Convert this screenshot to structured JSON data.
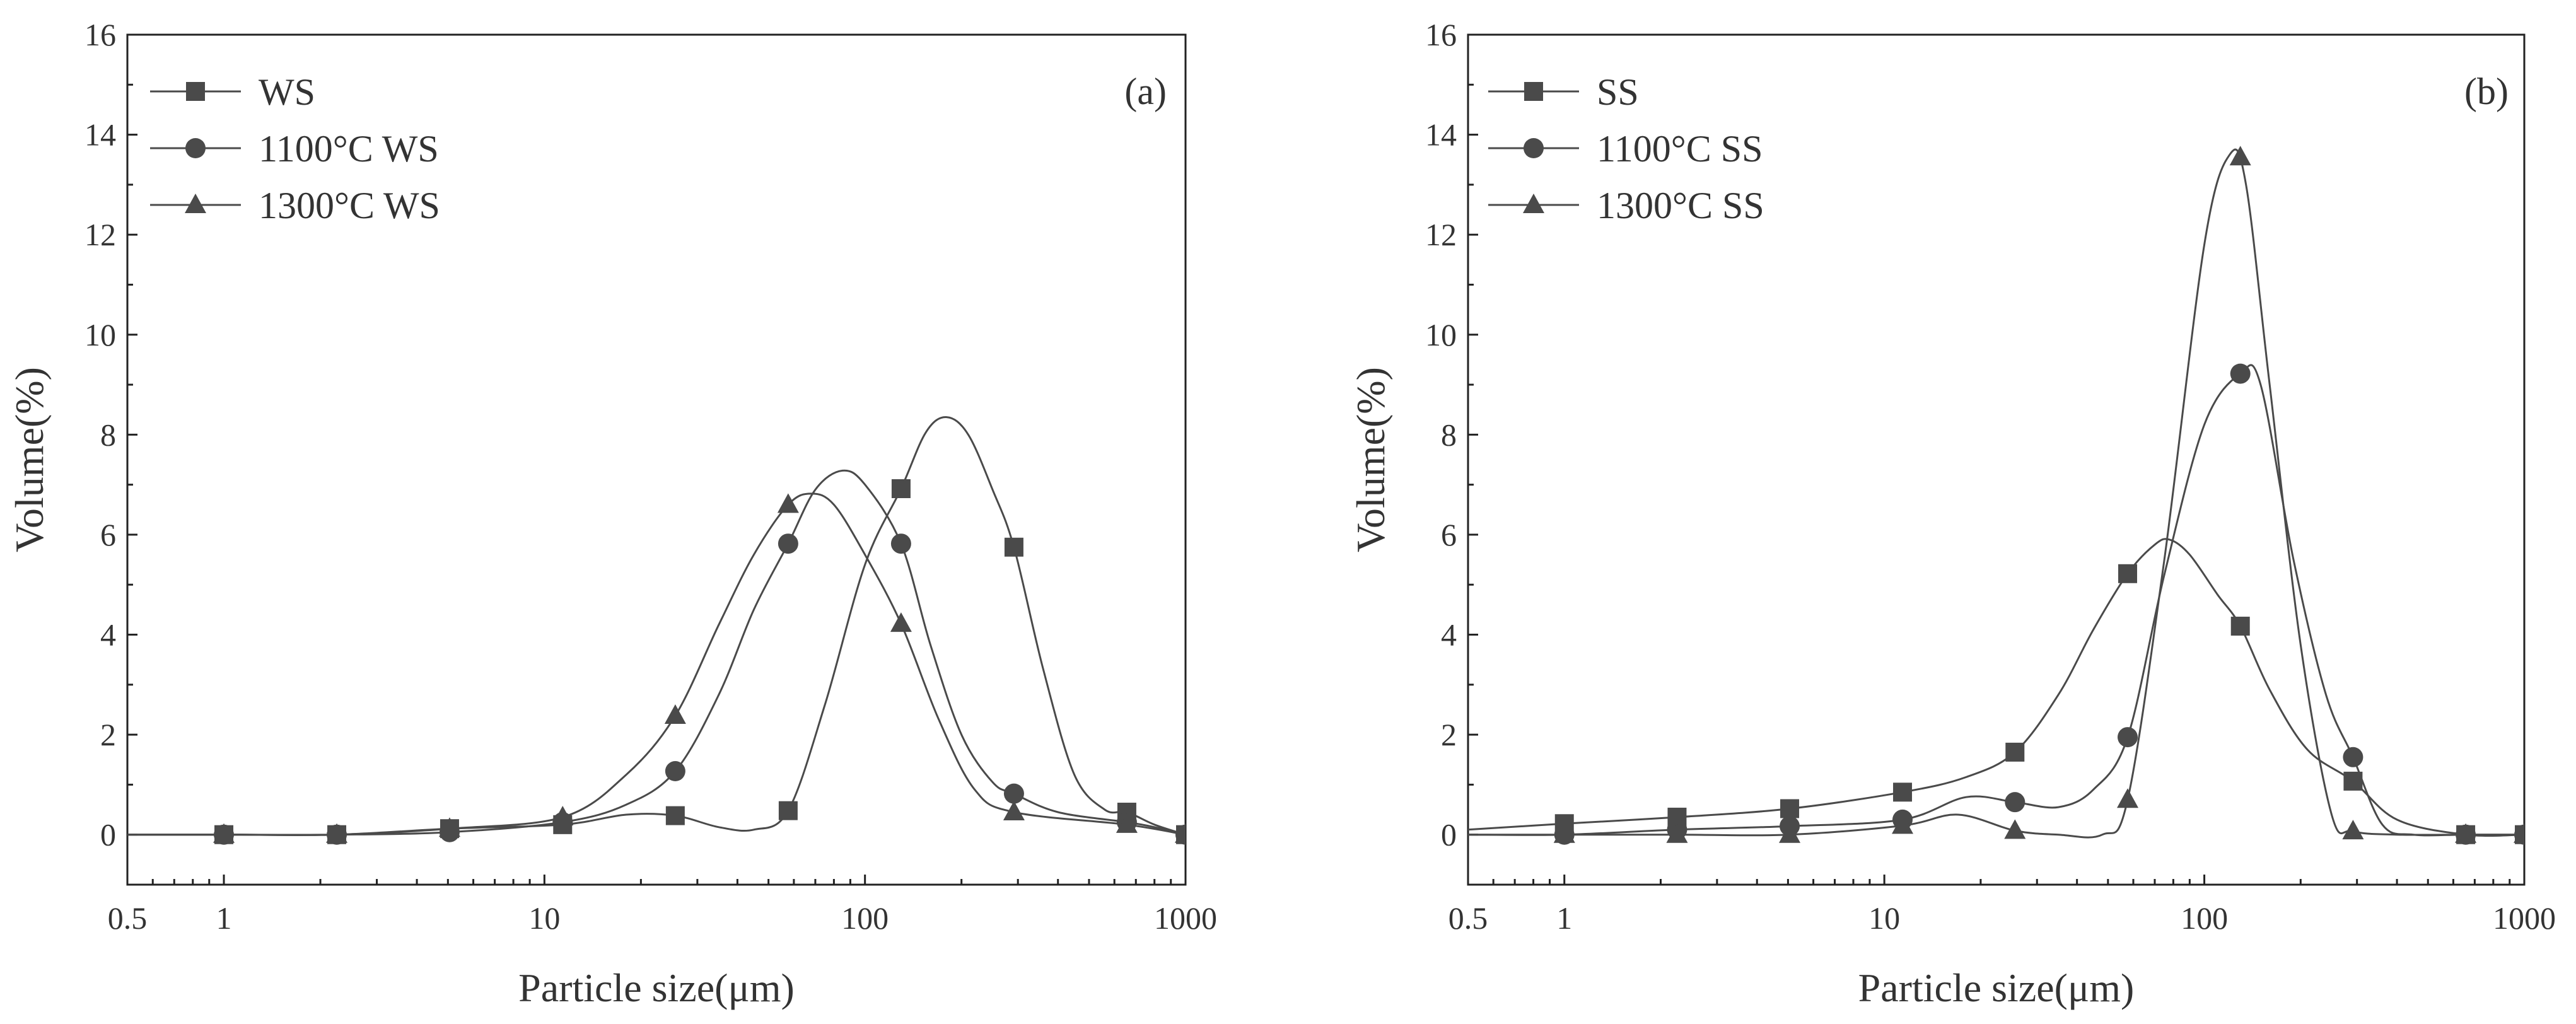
{
  "chart_data": [
    {
      "type": "line",
      "panel_label": "(a)",
      "xlabel": "Particle size(μm)",
      "ylabel": "Volume(%)",
      "xscale": "log",
      "xlim": [
        0.5,
        1000
      ],
      "ylim": [
        -1,
        16
      ],
      "x_ticks": [
        0.5,
        1,
        10,
        100,
        1000
      ],
      "x_tick_labels": [
        "0.5",
        "1",
        "10",
        "100",
        "1000"
      ],
      "y_ticks": [
        0,
        2,
        4,
        6,
        8,
        10,
        12,
        14,
        16
      ],
      "y_tick_labels": [
        "0",
        "2",
        "4",
        "6",
        "8",
        "10",
        "12",
        "14",
        "16"
      ],
      "legend_position": "top-left",
      "series": [
        {
          "name": "WS",
          "marker": "square",
          "markers": [
            [
              1,
              0
            ],
            [
              2.25,
              0
            ],
            [
              5.06,
              0.12
            ],
            [
              11.4,
              0.2
            ],
            [
              25.6,
              0.38
            ],
            [
              57.6,
              0.48
            ],
            [
              129.6,
              6.92
            ],
            [
              291.6,
              5.75
            ],
            [
              656,
              0.45
            ],
            [
              1000,
              0
            ]
          ],
          "curve": [
            [
              0.5,
              0
            ],
            [
              1,
              0
            ],
            [
              2.25,
              0
            ],
            [
              5.06,
              0.12
            ],
            [
              11.4,
              0.2
            ],
            [
              18,
              0.4
            ],
            [
              25.6,
              0.38
            ],
            [
              35,
              0.15
            ],
            [
              45,
              0.1
            ],
            [
              57.6,
              0.48
            ],
            [
              75,
              2.6
            ],
            [
              100,
              5.4
            ],
            [
              129.6,
              6.92
            ],
            [
              155,
              8.05
            ],
            [
              180,
              8.35
            ],
            [
              210,
              8.0
            ],
            [
              250,
              6.9
            ],
            [
              291.6,
              5.75
            ],
            [
              360,
              3.3
            ],
            [
              450,
              1.2
            ],
            [
              560,
              0.5
            ],
            [
              656,
              0.45
            ],
            [
              800,
              0.2
            ],
            [
              1000,
              0
            ]
          ]
        },
        {
          "name": "1100°C WS",
          "marker": "circle",
          "markers": [
            [
              1,
              0
            ],
            [
              2.25,
              0
            ],
            [
              5.06,
              0.05
            ],
            [
              11.4,
              0.25
            ],
            [
              25.6,
              1.27
            ],
            [
              57.6,
              5.82
            ],
            [
              129.6,
              5.82
            ],
            [
              291.6,
              0.82
            ],
            [
              656,
              0.25
            ],
            [
              1000,
              0
            ]
          ],
          "curve": [
            [
              0.5,
              0
            ],
            [
              1,
              0
            ],
            [
              2.25,
              0
            ],
            [
              5.06,
              0.05
            ],
            [
              11.4,
              0.25
            ],
            [
              18,
              0.6
            ],
            [
              25.6,
              1.27
            ],
            [
              35,
              2.8
            ],
            [
              45,
              4.5
            ],
            [
              57.6,
              5.82
            ],
            [
              70,
              6.9
            ],
            [
              85,
              7.28
            ],
            [
              100,
              7.0
            ],
            [
              129.6,
              5.82
            ],
            [
              160,
              3.8
            ],
            [
              200,
              2.0
            ],
            [
              250,
              1.05
            ],
            [
              291.6,
              0.82
            ],
            [
              400,
              0.45
            ],
            [
              656,
              0.25
            ],
            [
              800,
              0.15
            ],
            [
              1000,
              0
            ]
          ]
        },
        {
          "name": "1300°C WS",
          "marker": "triangle",
          "markers": [
            [
              1,
              0
            ],
            [
              2.25,
              0
            ],
            [
              5.06,
              0.12
            ],
            [
              11.4,
              0.35
            ],
            [
              25.6,
              2.38
            ],
            [
              57.6,
              6.6
            ],
            [
              129.6,
              4.22
            ],
            [
              291.6,
              0.45
            ],
            [
              656,
              0.2
            ],
            [
              1000,
              0
            ]
          ],
          "curve": [
            [
              0.5,
              0
            ],
            [
              1,
              0
            ],
            [
              2.25,
              0
            ],
            [
              5.06,
              0.12
            ],
            [
              11.4,
              0.35
            ],
            [
              18,
              1.2
            ],
            [
              25.6,
              2.38
            ],
            [
              35,
              4.2
            ],
            [
              45,
              5.6
            ],
            [
              57.6,
              6.6
            ],
            [
              68,
              6.82
            ],
            [
              80,
              6.6
            ],
            [
              100,
              5.6
            ],
            [
              129.6,
              4.22
            ],
            [
              170,
              2.3
            ],
            [
              220,
              0.9
            ],
            [
              291.6,
              0.45
            ],
            [
              656,
              0.2
            ],
            [
              1000,
              0
            ]
          ]
        }
      ]
    },
    {
      "type": "line",
      "panel_label": "(b)",
      "xlabel": "Particle size(μm)",
      "ylabel": "Volume(%)",
      "xscale": "log",
      "xlim": [
        0.5,
        1000
      ],
      "ylim": [
        -1,
        16
      ],
      "x_ticks": [
        0.5,
        1,
        10,
        100,
        1000
      ],
      "x_tick_labels": [
        "0.5",
        "1",
        "10",
        "100",
        "1000"
      ],
      "y_ticks": [
        0,
        2,
        4,
        6,
        8,
        10,
        12,
        14,
        16
      ],
      "y_tick_labels": [
        "0",
        "2",
        "4",
        "6",
        "8",
        "10",
        "12",
        "14",
        "16"
      ],
      "legend_position": "top-left",
      "series": [
        {
          "name": "SS",
          "marker": "square",
          "markers": [
            [
              1,
              0.22
            ],
            [
              2.25,
              0.35
            ],
            [
              5.06,
              0.52
            ],
            [
              11.4,
              0.85
            ],
            [
              25.6,
              1.65
            ],
            [
              57.6,
              5.22
            ],
            [
              129.6,
              4.17
            ],
            [
              291.6,
              1.07
            ],
            [
              656,
              0
            ],
            [
              1000,
              0
            ]
          ],
          "curve": [
            [
              0.5,
              0.1
            ],
            [
              1,
              0.22
            ],
            [
              2.25,
              0.35
            ],
            [
              5.06,
              0.52
            ],
            [
              11.4,
              0.85
            ],
            [
              18,
              1.15
            ],
            [
              25.6,
              1.65
            ],
            [
              35,
              2.8
            ],
            [
              45,
              4.1
            ],
            [
              57.6,
              5.22
            ],
            [
              70,
              5.8
            ],
            [
              78,
              5.9
            ],
            [
              90,
              5.6
            ],
            [
              110,
              4.8
            ],
            [
              129.6,
              4.17
            ],
            [
              160,
              2.9
            ],
            [
              210,
              1.7
            ],
            [
              291.6,
              1.07
            ],
            [
              400,
              0.3
            ],
            [
              656,
              0
            ],
            [
              1000,
              0
            ]
          ]
        },
        {
          "name": "1100°C SS",
          "marker": "circle",
          "markers": [
            [
              1,
              0
            ],
            [
              2.25,
              0.1
            ],
            [
              5.06,
              0.17
            ],
            [
              11.4,
              0.3
            ],
            [
              25.6,
              0.65
            ],
            [
              57.6,
              1.95
            ],
            [
              129.6,
              9.22
            ],
            [
              291.6,
              1.55
            ],
            [
              656,
              0
            ],
            [
              1000,
              0
            ]
          ],
          "curve": [
            [
              0.5,
              0
            ],
            [
              1,
              0
            ],
            [
              2.25,
              0.1
            ],
            [
              5.06,
              0.17
            ],
            [
              11.4,
              0.3
            ],
            [
              18,
              0.75
            ],
            [
              25.6,
              0.65
            ],
            [
              35,
              0.55
            ],
            [
              45,
              0.9
            ],
            [
              57.6,
              1.95
            ],
            [
              75,
              5.2
            ],
            [
              100,
              8.2
            ],
            [
              129.6,
              9.22
            ],
            [
              150,
              9.0
            ],
            [
              190,
              5.5
            ],
            [
              240,
              2.8
            ],
            [
              291.6,
              1.55
            ],
            [
              360,
              0.2
            ],
            [
              450,
              0
            ],
            [
              656,
              0
            ],
            [
              1000,
              0
            ]
          ]
        },
        {
          "name": "1300°C SS",
          "marker": "triangle",
          "markers": [
            [
              1,
              0
            ],
            [
              2.25,
              0
            ],
            [
              5.06,
              0
            ],
            [
              11.4,
              0.18
            ],
            [
              25.6,
              0.08
            ],
            [
              57.6,
              0.7
            ],
            [
              129.6,
              13.55
            ],
            [
              291.6,
              0.07
            ],
            [
              656,
              0
            ],
            [
              1000,
              0
            ]
          ],
          "curve": [
            [
              0.5,
              0
            ],
            [
              1,
              0
            ],
            [
              2.25,
              0
            ],
            [
              5.06,
              0
            ],
            [
              11.4,
              0.18
            ],
            [
              17,
              0.4
            ],
            [
              25.6,
              0.08
            ],
            [
              35,
              0
            ],
            [
              48,
              0
            ],
            [
              57.6,
              0.7
            ],
            [
              75,
              5.5
            ],
            [
              100,
              11.8
            ],
            [
              120,
              13.6
            ],
            [
              135,
              13.0
            ],
            [
              160,
              9.0
            ],
            [
              200,
              3.8
            ],
            [
              250,
              0.4
            ],
            [
              291.6,
              0.07
            ],
            [
              400,
              0
            ],
            [
              656,
              0
            ],
            [
              1000,
              0
            ]
          ]
        }
      ]
    }
  ]
}
